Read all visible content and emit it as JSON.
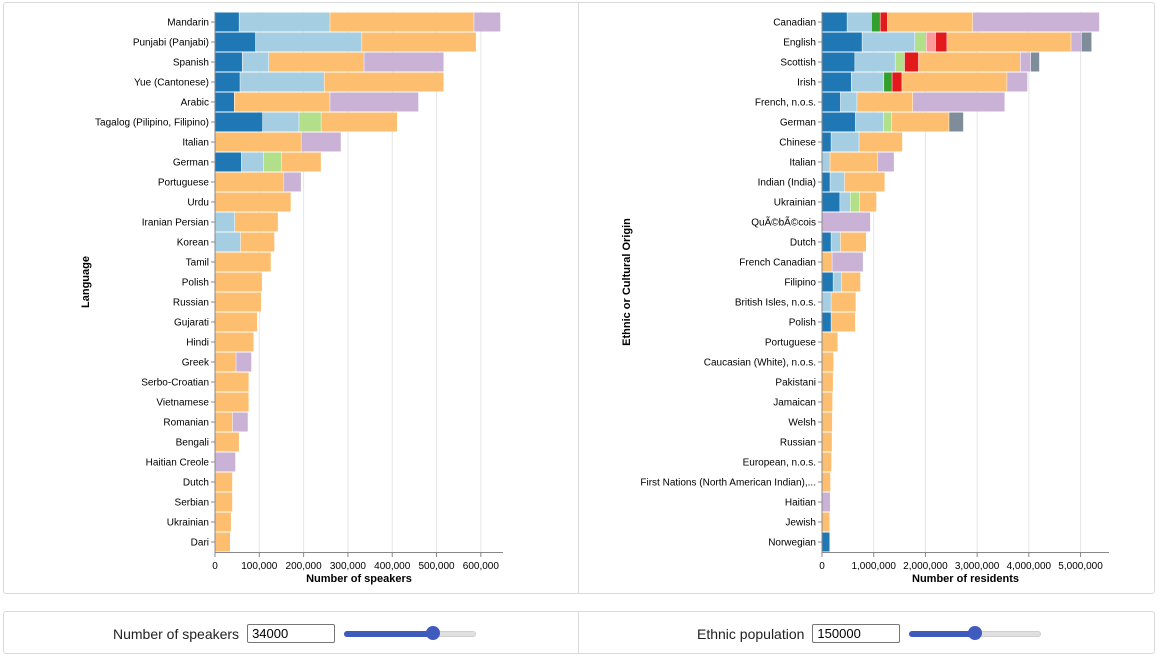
{
  "colors": {
    "dark_blue": "#1f77b4",
    "light_blue": "#a6cee3",
    "light_green": "#b2df8a",
    "green": "#33a02c",
    "pink": "#fb9a99",
    "red": "#e31a1c",
    "orange": "#fdbf6f",
    "purple": "#cab2d6",
    "slate": "#7f8c9a",
    "grid": "#e6e6e6",
    "axis": "#888888"
  },
  "chart_data": [
    {
      "type": "bar",
      "orientation": "horizontal",
      "stacked": true,
      "xlabel": "Number of speakers",
      "ylabel": "Language",
      "xlim": [
        0,
        650000
      ],
      "xticks": [
        0,
        100000,
        200000,
        300000,
        400000,
        500000,
        600000
      ],
      "xtick_labels": [
        "0",
        "100,000",
        "200,000",
        "300,000",
        "400,000",
        "500,000",
        "600,000"
      ],
      "grid": true,
      "categories": [
        "Mandarin",
        "Punjabi (Panjabi)",
        "Spanish",
        "Yue (Cantonese)",
        "Arabic",
        "Tagalog (Pilipino, Filipino)",
        "Italian",
        "German",
        "Portuguese",
        "Urdu",
        "Iranian Persian",
        "Korean",
        "Tamil",
        "Polish",
        "Russian",
        "Gujarati",
        "Hindi",
        "Greek",
        "Serbo-Croatian",
        "Vietnamese",
        "Romanian",
        "Bengali",
        "Haitian Creole",
        "Dutch",
        "Serbian",
        "Ukrainian",
        "Dari"
      ],
      "bars": [
        {
          "segments": [
            {
              "color": "dark_blue",
              "value": 55000
            },
            {
              "color": "light_blue",
              "value": 205000
            },
            {
              "color": "orange",
              "value": 325000
            },
            {
              "color": "purple",
              "value": 60000
            }
          ]
        },
        {
          "segments": [
            {
              "color": "dark_blue",
              "value": 92000
            },
            {
              "color": "light_blue",
              "value": 240000
            },
            {
              "color": "orange",
              "value": 258000
            }
          ]
        },
        {
          "segments": [
            {
              "color": "dark_blue",
              "value": 62000
            },
            {
              "color": "light_blue",
              "value": 60000
            },
            {
              "color": "orange",
              "value": 215000
            },
            {
              "color": "purple",
              "value": 180000
            }
          ]
        },
        {
          "segments": [
            {
              "color": "dark_blue",
              "value": 57000
            },
            {
              "color": "light_blue",
              "value": 190000
            },
            {
              "color": "orange",
              "value": 270000
            }
          ]
        },
        {
          "segments": [
            {
              "color": "dark_blue",
              "value": 44000
            },
            {
              "color": "orange",
              "value": 216000
            },
            {
              "color": "purple",
              "value": 200000
            }
          ]
        },
        {
          "segments": [
            {
              "color": "dark_blue",
              "value": 108000
            },
            {
              "color": "light_blue",
              "value": 82000
            },
            {
              "color": "light_green",
              "value": 50000
            },
            {
              "color": "orange",
              "value": 172000
            }
          ]
        },
        {
          "segments": [
            {
              "color": "orange",
              "value": 195000
            },
            {
              "color": "purple",
              "value": 90000
            }
          ]
        },
        {
          "segments": [
            {
              "color": "dark_blue",
              "value": 60000
            },
            {
              "color": "light_blue",
              "value": 50000
            },
            {
              "color": "light_green",
              "value": 40000
            },
            {
              "color": "orange",
              "value": 90000
            }
          ]
        },
        {
          "segments": [
            {
              "color": "orange",
              "value": 155000
            },
            {
              "color": "purple",
              "value": 40000
            }
          ]
        },
        {
          "segments": [
            {
              "color": "orange",
              "value": 172000
            }
          ]
        },
        {
          "segments": [
            {
              "color": "light_blue",
              "value": 45000
            },
            {
              "color": "orange",
              "value": 98000
            }
          ]
        },
        {
          "segments": [
            {
              "color": "light_blue",
              "value": 58000
            },
            {
              "color": "orange",
              "value": 77000
            }
          ]
        },
        {
          "segments": [
            {
              "color": "orange",
              "value": 127000
            }
          ]
        },
        {
          "segments": [
            {
              "color": "orange",
              "value": 107000
            }
          ]
        },
        {
          "segments": [
            {
              "color": "orange",
              "value": 105000
            }
          ]
        },
        {
          "segments": [
            {
              "color": "orange",
              "value": 96000
            }
          ]
        },
        {
          "segments": [
            {
              "color": "orange",
              "value": 88000
            }
          ]
        },
        {
          "segments": [
            {
              "color": "orange",
              "value": 48000
            },
            {
              "color": "purple",
              "value": 35000
            }
          ]
        },
        {
          "segments": [
            {
              "color": "orange",
              "value": 77000
            }
          ]
        },
        {
          "segments": [
            {
              "color": "orange",
              "value": 77000
            }
          ]
        },
        {
          "segments": [
            {
              "color": "orange",
              "value": 40000
            },
            {
              "color": "purple",
              "value": 35000
            }
          ]
        },
        {
          "segments": [
            {
              "color": "orange",
              "value": 55000
            }
          ]
        },
        {
          "segments": [
            {
              "color": "purple",
              "value": 47000
            }
          ]
        },
        {
          "segments": [
            {
              "color": "orange",
              "value": 40000
            }
          ]
        },
        {
          "segments": [
            {
              "color": "orange",
              "value": 40000
            }
          ]
        },
        {
          "segments": [
            {
              "color": "orange",
              "value": 37000
            }
          ]
        },
        {
          "segments": [
            {
              "color": "orange",
              "value": 35000
            }
          ]
        }
      ]
    },
    {
      "type": "bar",
      "orientation": "horizontal",
      "stacked": true,
      "xlabel": "Number of residents",
      "ylabel": "Ethnic or Cultural Origin",
      "xlim": [
        0,
        5550000
      ],
      "xticks": [
        0,
        1000000,
        2000000,
        3000000,
        4000000,
        5000000
      ],
      "xtick_labels": [
        "0",
        "1,000,000",
        "2,000,000",
        "3,000,000",
        "4,000,000",
        "5,000,000"
      ],
      "grid": true,
      "categories": [
        "Canadian",
        "English",
        "Scottish",
        "Irish",
        "French, n.o.s.",
        "German",
        "Chinese",
        "Italian",
        "Indian (India)",
        "Ukrainian",
        "QuÃ©bÃ©cois",
        "Dutch",
        "French Canadian",
        "Filipino",
        "British Isles, n.o.s.",
        "Polish",
        "Portuguese",
        "Caucasian (White), n.o.s.",
        "Pakistani",
        "Jamaican",
        "Welsh",
        "Russian",
        "European, n.o.s.",
        "First Nations (North American Indian),...",
        "Haitian",
        "Jewish",
        "Norwegian"
      ],
      "bars": [
        {
          "segments": [
            {
              "color": "dark_blue",
              "value": 490000
            },
            {
              "color": "light_blue",
              "value": 470000
            },
            {
              "color": "green",
              "value": 170000
            },
            {
              "color": "red",
              "value": 140000
            },
            {
              "color": "orange",
              "value": 1650000
            },
            {
              "color": "purple",
              "value": 2450000
            }
          ]
        },
        {
          "segments": [
            {
              "color": "dark_blue",
              "value": 780000
            },
            {
              "color": "light_blue",
              "value": 1020000
            },
            {
              "color": "light_green",
              "value": 220000
            },
            {
              "color": "pink",
              "value": 180000
            },
            {
              "color": "red",
              "value": 220000
            },
            {
              "color": "orange",
              "value": 2400000
            },
            {
              "color": "purple",
              "value": 200000
            },
            {
              "color": "slate",
              "value": 200000
            }
          ]
        },
        {
          "segments": [
            {
              "color": "dark_blue",
              "value": 640000
            },
            {
              "color": "light_blue",
              "value": 780000
            },
            {
              "color": "light_green",
              "value": 180000
            },
            {
              "color": "red",
              "value": 270000
            },
            {
              "color": "orange",
              "value": 1970000
            },
            {
              "color": "purple",
              "value": 200000
            },
            {
              "color": "slate",
              "value": 170000
            }
          ]
        },
        {
          "segments": [
            {
              "color": "dark_blue",
              "value": 570000
            },
            {
              "color": "light_blue",
              "value": 630000
            },
            {
              "color": "green",
              "value": 160000
            },
            {
              "color": "red",
              "value": 190000
            },
            {
              "color": "orange",
              "value": 2030000
            },
            {
              "color": "purple",
              "value": 400000
            }
          ]
        },
        {
          "segments": [
            {
              "color": "dark_blue",
              "value": 360000
            },
            {
              "color": "light_blue",
              "value": 320000
            },
            {
              "color": "orange",
              "value": 1080000
            },
            {
              "color": "purple",
              "value": 1780000
            }
          ]
        },
        {
          "segments": [
            {
              "color": "dark_blue",
              "value": 650000
            },
            {
              "color": "light_blue",
              "value": 540000
            },
            {
              "color": "light_green",
              "value": 160000
            },
            {
              "color": "orange",
              "value": 1110000
            },
            {
              "color": "slate",
              "value": 280000
            }
          ]
        },
        {
          "segments": [
            {
              "color": "dark_blue",
              "value": 180000
            },
            {
              "color": "light_blue",
              "value": 540000
            },
            {
              "color": "orange",
              "value": 840000
            }
          ]
        },
        {
          "segments": [
            {
              "color": "light_blue",
              "value": 160000
            },
            {
              "color": "orange",
              "value": 920000
            },
            {
              "color": "purple",
              "value": 320000
            }
          ]
        },
        {
          "segments": [
            {
              "color": "dark_blue",
              "value": 160000
            },
            {
              "color": "light_blue",
              "value": 280000
            },
            {
              "color": "orange",
              "value": 780000
            }
          ]
        },
        {
          "segments": [
            {
              "color": "dark_blue",
              "value": 350000
            },
            {
              "color": "light_blue",
              "value": 200000
            },
            {
              "color": "light_green",
              "value": 180000
            },
            {
              "color": "orange",
              "value": 330000
            }
          ]
        },
        {
          "segments": [
            {
              "color": "purple",
              "value": 940000
            }
          ]
        },
        {
          "segments": [
            {
              "color": "dark_blue",
              "value": 180000
            },
            {
              "color": "light_blue",
              "value": 180000
            },
            {
              "color": "orange",
              "value": 500000
            }
          ]
        },
        {
          "segments": [
            {
              "color": "orange",
              "value": 200000
            },
            {
              "color": "purple",
              "value": 600000
            }
          ]
        },
        {
          "segments": [
            {
              "color": "dark_blue",
              "value": 220000
            },
            {
              "color": "light_blue",
              "value": 160000
            },
            {
              "color": "orange",
              "value": 370000
            }
          ]
        },
        {
          "segments": [
            {
              "color": "light_blue",
              "value": 180000
            },
            {
              "color": "orange",
              "value": 480000
            }
          ]
        },
        {
          "segments": [
            {
              "color": "dark_blue",
              "value": 180000
            },
            {
              "color": "orange",
              "value": 470000
            }
          ]
        },
        {
          "segments": [
            {
              "color": "orange",
              "value": 310000
            }
          ]
        },
        {
          "segments": [
            {
              "color": "orange",
              "value": 230000
            }
          ]
        },
        {
          "segments": [
            {
              "color": "orange",
              "value": 220000
            }
          ]
        },
        {
          "segments": [
            {
              "color": "orange",
              "value": 210000
            }
          ]
        },
        {
          "segments": [
            {
              "color": "orange",
              "value": 205000
            }
          ]
        },
        {
          "segments": [
            {
              "color": "orange",
              "value": 200000
            }
          ]
        },
        {
          "segments": [
            {
              "color": "orange",
              "value": 190000
            }
          ]
        },
        {
          "segments": [
            {
              "color": "orange",
              "value": 170000
            }
          ]
        },
        {
          "segments": [
            {
              "color": "purple",
              "value": 165000
            }
          ]
        },
        {
          "segments": [
            {
              "color": "orange",
              "value": 155000
            }
          ]
        },
        {
          "segments": [
            {
              "color": "dark_blue",
              "value": 155000
            }
          ]
        }
      ]
    }
  ],
  "controls": {
    "speakers": {
      "label": "Number of speakers",
      "value": "34000",
      "slider_fraction": 0.67
    },
    "ethnic": {
      "label": "Ethnic population",
      "value": "150000",
      "slider_fraction": 0.5
    }
  }
}
